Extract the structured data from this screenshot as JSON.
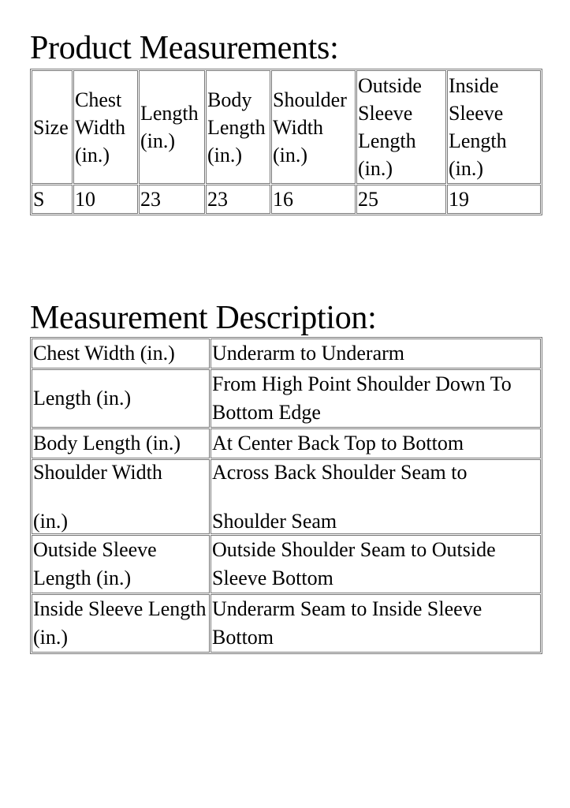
{
  "product_measurements": {
    "title": "Product Measurements:",
    "headers": [
      "Size",
      "Chest Width (in.)",
      "Length (in.)",
      "Body Length (in.)",
      "Shoulder Width (in.)",
      "Outside Sleeve Length (in.)",
      "Inside Sleeve Length (in.)"
    ],
    "rows": [
      [
        "S",
        "10",
        "23",
        "23",
        "16",
        "25",
        "19"
      ]
    ]
  },
  "measurement_description": {
    "title": "Measurement Description:",
    "rows": [
      {
        "name": "Chest Width (in.)",
        "description": "Underarm to Underarm"
      },
      {
        "name": "Length (in.)",
        "description": "From High Point Shoulder Down To Bottom Edge"
      },
      {
        "name": "Body Length (in.)",
        "description": "At Center Back Top to Bottom"
      },
      {
        "name": "Shoulder Width\n\n(in.)",
        "description": "Across Back Shoulder Seam to\n\nShoulder Seam"
      },
      {
        "name": "Outside Sleeve Length (in.)",
        "description": "Outside Shoulder Seam to Outside Sleeve Bottom"
      },
      {
        "name": "Inside Sleeve Length (in.)",
        "description": "Underarm Seam to Inside Sleeve Bottom"
      }
    ]
  }
}
